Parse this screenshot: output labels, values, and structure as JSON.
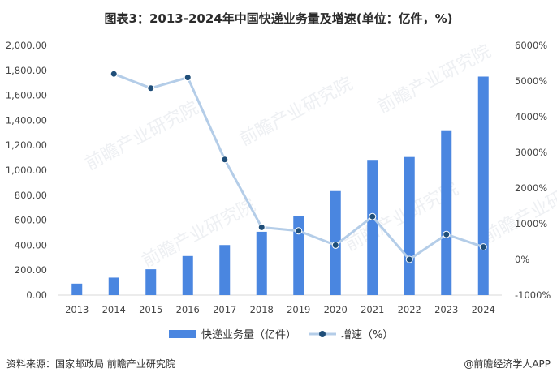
{
  "title": "图表3：2013-2024年中国快递业务量及增速(单位：亿件，%)",
  "source_text": "资料来源：国家邮政局 前瞻产业研究院",
  "credit_text": "@前瞻经济学人APP",
  "watermark_text": "前瞻产业研究院",
  "colors": {
    "bar": "#4a86e0",
    "line": "#b4cde8",
    "marker": "#1f4e79",
    "axis": "#d9d9d9"
  },
  "chart_data": {
    "type": "bar",
    "categories": [
      "2013",
      "2014",
      "2015",
      "2016",
      "2017",
      "2018",
      "2019",
      "2020",
      "2021",
      "2022",
      "2023",
      "2024"
    ],
    "series": [
      {
        "name": "快递业务量（亿件）",
        "type": "bar",
        "axis": "left",
        "values": [
          92,
          140,
          207,
          313,
          401,
          507,
          635,
          833,
          1083,
          1106,
          1320,
          1750
        ]
      },
      {
        "name": "增速（%）",
        "type": "line",
        "axis": "right",
        "values": [
          null,
          5200,
          4800,
          5100,
          2800,
          900,
          800,
          400,
          1200,
          0,
          700,
          350
        ]
      }
    ],
    "y_left": {
      "ylim": [
        0,
        2000
      ],
      "ticks": [
        0,
        200,
        400,
        600,
        800,
        1000,
        1200,
        1400,
        1600,
        1800,
        2000
      ],
      "tick_labels": [
        "0.00",
        "200.00",
        "400.00",
        "600.00",
        "800.00",
        "1,000.00",
        "1,200.00",
        "1,400.00",
        "1,600.00",
        "1,800.00",
        "2,000.00"
      ]
    },
    "y_right": {
      "ylim": [
        -1000,
        6000
      ],
      "ticks": [
        -1000,
        0,
        1000,
        2000,
        3000,
        4000,
        5000,
        6000
      ],
      "tick_labels": [
        "-1000%",
        "0%",
        "1000%",
        "2000%",
        "3000%",
        "4000%",
        "5000%",
        "6000%"
      ]
    },
    "legend": {
      "bar_label": "快递业务量（亿件）",
      "line_label": "增速（%）",
      "position": "bottom"
    }
  }
}
